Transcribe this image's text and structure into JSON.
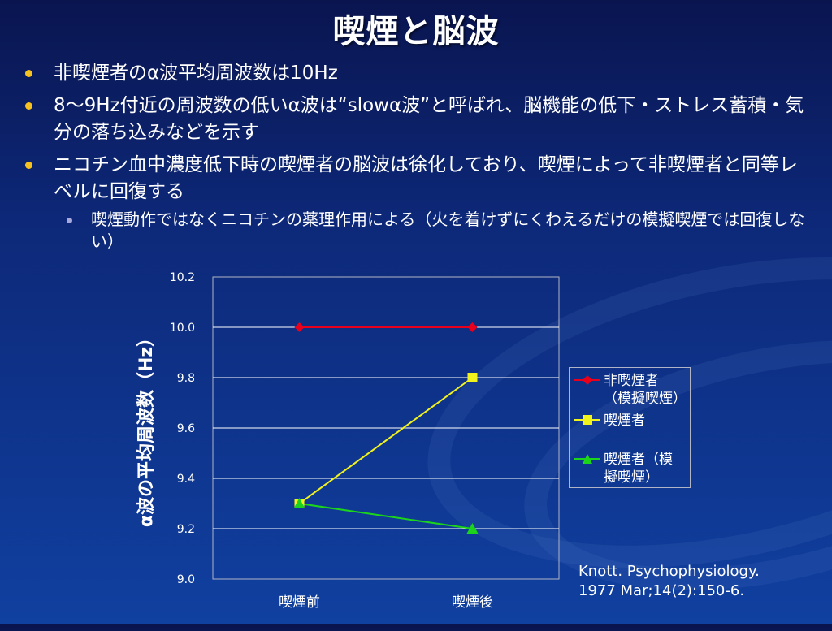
{
  "title": "喫煙と脳波",
  "bullets": [
    {
      "text": "非喫煙者のα波平均周波数は10Hz"
    },
    {
      "text": "8～9Hz付近の周波数の低いα波は“slowα波”と呼ばれ、脳機能の低下・ストレス蓄積・気分の落ち込みなどを示す"
    },
    {
      "text": "ニコチン血中濃度低下時の喫煙者の脳波は徐化しており、喫煙によって非喫煙者と同等レベルに回復する",
      "sub": "喫煙動作ではなくニコチンの薬理作用による（火を着けずにくわえるだけの模擬喫煙では回復しない）"
    }
  ],
  "colors": {
    "bullet": "#f6c21f",
    "sub_bullet": "#a8a8dd",
    "series": [
      "#e8001c",
      "#f2f21c",
      "#1cd41c"
    ]
  },
  "chart_data": {
    "type": "line",
    "categories": [
      "喫煙前",
      "喫煙後"
    ],
    "ylabel": "α波の平均周波数（Hz）",
    "ylim": [
      9.0,
      10.2
    ],
    "yticks": [
      "9.0",
      "9.2",
      "9.4",
      "9.6",
      "9.8",
      "10.0",
      "10.2"
    ],
    "grid": true,
    "legend_position": "right",
    "series": [
      {
        "name": "非喫煙者（模擬喫煙）",
        "values": [
          10.0,
          10.0
        ],
        "marker": "diamond"
      },
      {
        "name": "喫煙者",
        "values": [
          9.3,
          9.8
        ],
        "marker": "square"
      },
      {
        "name": "喫煙者（模擬喫煙）",
        "values": [
          9.3,
          9.2
        ],
        "marker": "triangle"
      }
    ]
  },
  "legend_items": [
    {
      "line1": "非喫煙者",
      "line2": "（模擬喫煙）"
    },
    {
      "line1": "喫煙者",
      "line2": ""
    },
    {
      "line1": "喫煙者（模",
      "line2": "擬喫煙）"
    }
  ],
  "reference": {
    "line1": "Knott. Psychophysiology.",
    "line2": " 1977 Mar;14(2):150-6."
  }
}
